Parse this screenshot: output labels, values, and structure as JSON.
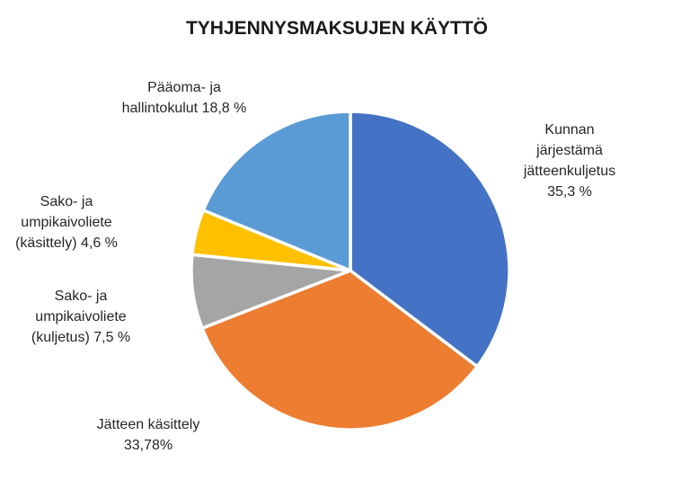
{
  "title": "TYHJENNYSMAKSUJEN KÄYTTÖ",
  "chart_data": {
    "type": "pie",
    "title": "TYHJENNYSMAKSUJEN KÄYTTÖ",
    "start_angle_deg": 0,
    "direction": "clockwise",
    "legend": "none",
    "label_style": "outside callouts with category name and percent",
    "slices": [
      {
        "label": "Kunnan järjestämä jätteenkuljetus",
        "value": 35.3,
        "pct_label": "35,3 %",
        "color": "#4472C4"
      },
      {
        "label": "Jätteen käsittely",
        "value": 33.78,
        "pct_label": "33,78%",
        "color": "#ED7D31"
      },
      {
        "label": "Sako- ja umpikaivoliete (kuljetus)",
        "value": 7.5,
        "pct_label": "7,5 %",
        "color": "#A5A5A5"
      },
      {
        "label": "Sako- ja umpikaivoliete (käsittely)",
        "value": 4.6,
        "pct_label": "4,6 %",
        "color": "#FFC000"
      },
      {
        "label": "Pääoma- ja hallintokulut",
        "value": 18.8,
        "pct_label": "18,8 %",
        "color": "#5B9BD5"
      }
    ]
  },
  "callouts": [
    {
      "id": "kunnan",
      "lines": [
        "Kunnan",
        "järjestämä",
        "jätteenkuljetus",
        "35,3 %"
      ]
    },
    {
      "id": "jatteen",
      "lines": [
        "Jätteen käsittely",
        "33,78%"
      ]
    },
    {
      "id": "sako-kuljetus",
      "lines": [
        "Sako- ja",
        "umpikaivoliete",
        "(kuljetus) 7,5 %"
      ]
    },
    {
      "id": "sako-kasittely",
      "lines": [
        "Sako- ja",
        "umpikaivoliete",
        "(käsittely) 4,6 %"
      ]
    },
    {
      "id": "paaoma",
      "lines": [
        "Pääoma- ja",
        "hallintokulut 18,8 %"
      ]
    }
  ],
  "colors": {
    "background": "#FFFFFF",
    "slice_border": "#FFFFFF",
    "title_text": "#1A1A1A",
    "label_text": "#262626"
  }
}
